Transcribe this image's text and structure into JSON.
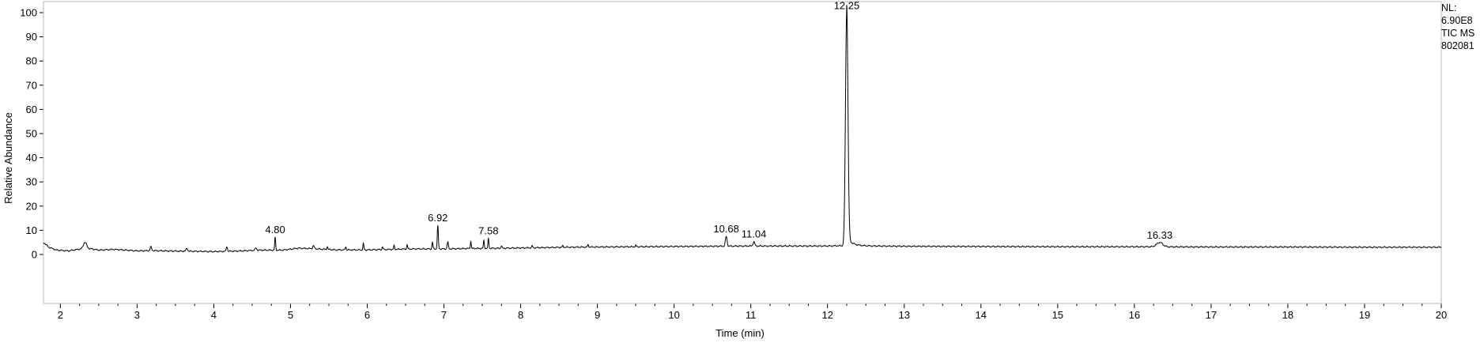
{
  "header": {
    "nl_label": "NL:",
    "nl_value": "6.90E8",
    "scan_filter": "TIC  MS",
    "sample_id": "802081"
  },
  "chart_data": {
    "type": "line",
    "xlabel": "Time (min)",
    "ylabel": "Relative Abundance",
    "xlim": [
      1.78,
      20
    ],
    "ylim": [
      0,
      100
    ],
    "x_ticks": [
      2,
      3,
      4,
      5,
      6,
      7,
      8,
      9,
      10,
      11,
      12,
      13,
      14,
      15,
      16,
      17,
      18,
      19,
      20
    ],
    "y_ticks": [
      0,
      10,
      20,
      30,
      40,
      50,
      60,
      70,
      80,
      90,
      100
    ],
    "grid": false,
    "line_color": "#000000",
    "baseline": [
      [
        1.78,
        5.0
      ],
      [
        1.85,
        3.0
      ],
      [
        1.95,
        1.8
      ],
      [
        2.1,
        1.5
      ],
      [
        2.25,
        2.2
      ],
      [
        2.35,
        2.6
      ],
      [
        2.5,
        1.8
      ],
      [
        2.7,
        2.1
      ],
      [
        3.0,
        1.5
      ],
      [
        3.2,
        1.6
      ],
      [
        3.5,
        1.4
      ],
      [
        3.8,
        1.3
      ],
      [
        4.0,
        1.2
      ],
      [
        4.3,
        1.4
      ],
      [
        4.6,
        1.8
      ],
      [
        4.9,
        1.8
      ],
      [
        5.1,
        2.6
      ],
      [
        5.3,
        2.4
      ],
      [
        5.6,
        1.9
      ],
      [
        6.0,
        1.9
      ],
      [
        6.3,
        2.1
      ],
      [
        6.6,
        2.3
      ],
      [
        7.0,
        2.3
      ],
      [
        7.4,
        2.5
      ],
      [
        7.8,
        2.6
      ],
      [
        8.2,
        2.8
      ],
      [
        8.6,
        3.0
      ],
      [
        9.0,
        3.1
      ],
      [
        9.5,
        3.2
      ],
      [
        10.0,
        3.3
      ],
      [
        10.5,
        3.4
      ],
      [
        11.0,
        3.5
      ],
      [
        11.5,
        3.5
      ],
      [
        12.0,
        3.5
      ],
      [
        12.15,
        3.6
      ],
      [
        13.0,
        3.4
      ],
      [
        14.0,
        3.3
      ],
      [
        15.0,
        3.2
      ],
      [
        16.0,
        3.2
      ],
      [
        17.0,
        3.1
      ],
      [
        18.0,
        3.1
      ],
      [
        19.0,
        3.0
      ],
      [
        20.0,
        3.0
      ]
    ],
    "peaks": [
      {
        "rt": 2.32,
        "height": 2.6,
        "width": 0.02
      },
      {
        "rt": 3.18,
        "height": 1.5,
        "width": 0.01
      },
      {
        "rt": 3.65,
        "height": 1.2,
        "width": 0.01
      },
      {
        "rt": 4.17,
        "height": 2.0,
        "width": 0.008
      },
      {
        "rt": 4.55,
        "height": 1.0,
        "width": 0.01
      },
      {
        "rt": 4.8,
        "height": 5.3,
        "width": 0.006,
        "label": "4.80"
      },
      {
        "rt": 5.3,
        "height": 1.2,
        "width": 0.01
      },
      {
        "rt": 5.48,
        "height": 1.2,
        "width": 0.006
      },
      {
        "rt": 5.72,
        "height": 1.3,
        "width": 0.006
      },
      {
        "rt": 5.95,
        "height": 2.6,
        "width": 0.006
      },
      {
        "rt": 6.2,
        "height": 1.2,
        "width": 0.006
      },
      {
        "rt": 6.35,
        "height": 1.5,
        "width": 0.006
      },
      {
        "rt": 6.52,
        "height": 1.8,
        "width": 0.006
      },
      {
        "rt": 6.85,
        "height": 2.8,
        "width": 0.006
      },
      {
        "rt": 6.92,
        "height": 9.5,
        "width": 0.007,
        "label": "6.92"
      },
      {
        "rt": 7.05,
        "height": 2.8,
        "width": 0.008
      },
      {
        "rt": 7.35,
        "height": 3.0,
        "width": 0.006
      },
      {
        "rt": 7.52,
        "height": 3.2,
        "width": 0.006
      },
      {
        "rt": 7.58,
        "height": 4.0,
        "width": 0.006,
        "label": "7.58"
      },
      {
        "rt": 7.75,
        "height": 1.0,
        "width": 0.006
      },
      {
        "rt": 8.15,
        "height": 0.8,
        "width": 0.006
      },
      {
        "rt": 8.55,
        "height": 0.6,
        "width": 0.006
      },
      {
        "rt": 8.88,
        "height": 1.0,
        "width": 0.006
      },
      {
        "rt": 9.5,
        "height": 0.5,
        "width": 0.006
      },
      {
        "rt": 10.68,
        "height": 4.0,
        "width": 0.011,
        "label": "10.68"
      },
      {
        "rt": 11.04,
        "height": 1.8,
        "width": 0.011,
        "label": "11.04"
      },
      {
        "rt": 12.25,
        "height": 96.5,
        "width": 0.016,
        "tail": 0.07,
        "label": "12.25"
      },
      {
        "rt": 16.33,
        "height": 1.8,
        "width": 0.04,
        "label": "16.33"
      }
    ]
  }
}
